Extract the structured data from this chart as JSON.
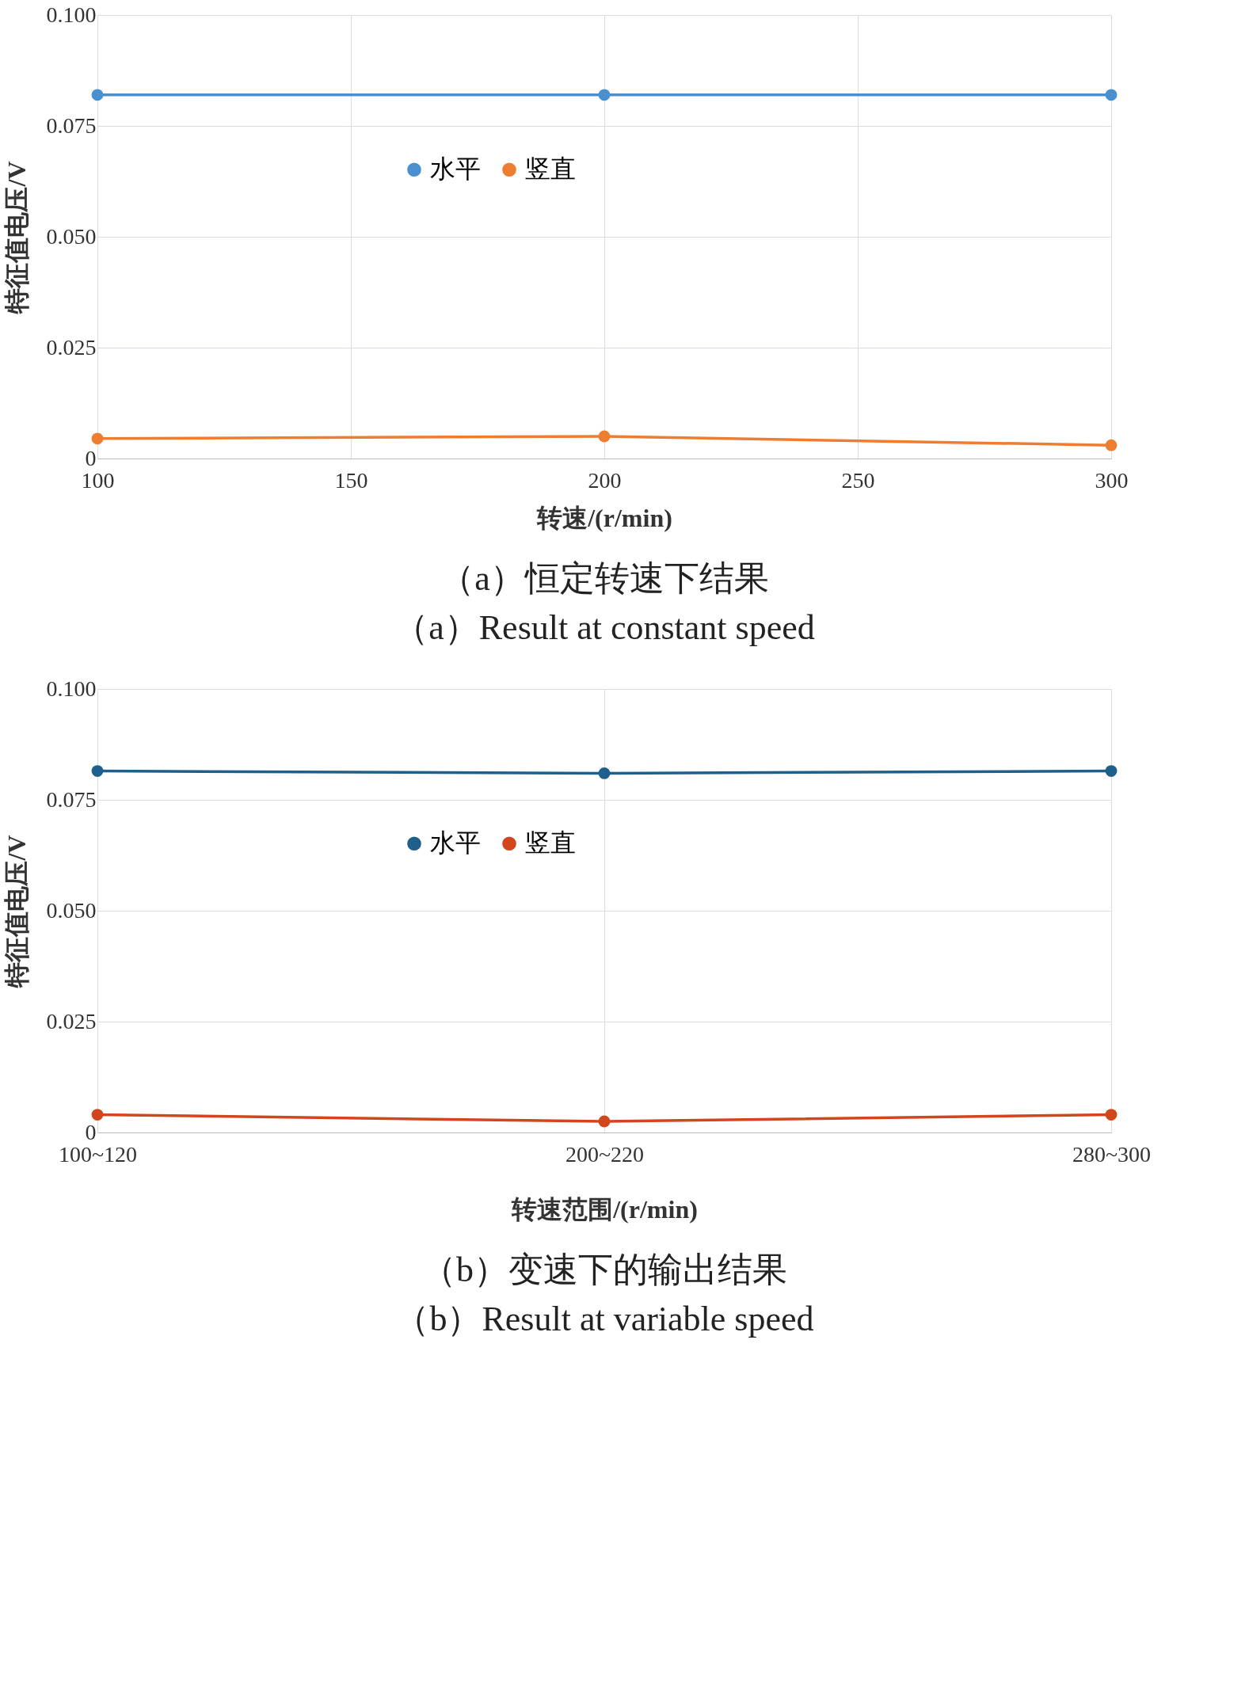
{
  "chart_data": [
    {
      "type": "line",
      "title": "（a）恒定转速下结果",
      "subtitle": "（a）Result at constant speed",
      "xlabel": "转速/(r/min)",
      "ylabel": "特征值电压/V",
      "x": [
        100,
        200,
        300
      ],
      "series": [
        {
          "name": "水平",
          "color": "#4a8fd0",
          "values": [
            0.082,
            0.082,
            0.082
          ]
        },
        {
          "name": "竖直",
          "color": "#ed7d31",
          "values": [
            0.0045,
            0.005,
            0.003
          ]
        }
      ],
      "xlim": [
        100,
        300
      ],
      "xticks": [
        100,
        150,
        200,
        250,
        300
      ],
      "ylim": [
        0,
        0.1
      ],
      "yticks": [
        0,
        {
          "value": 0.025,
          "label": "0.025"
        },
        {
          "value": 0.05,
          "label": "0.050"
        },
        {
          "value": 0.075,
          "label": "0.075"
        },
        {
          "value": 0.1,
          "label": "0.100"
        }
      ],
      "grid": true,
      "legend": "top",
      "marker": "circle",
      "line_style": "solid"
    },
    {
      "type": "line",
      "title": "（b）变速下的输出结果",
      "subtitle": "（b）Result at variable speed",
      "xlabel": "转速范围/(r/min)",
      "ylabel": "特征值电压/V",
      "categories": [
        "100~120",
        "200~220",
        "280~300"
      ],
      "series": [
        {
          "name": "水平",
          "color": "#1f5f8b",
          "values": [
            0.0815,
            0.081,
            0.0815
          ]
        },
        {
          "name": "竖直",
          "color": "#d2461e",
          "values": [
            0.004,
            0.0025,
            0.004
          ]
        }
      ],
      "ylim": [
        0,
        0.1
      ],
      "yticks": [
        0,
        {
          "value": 0.025,
          "label": "0.025"
        },
        {
          "value": 0.05,
          "label": "0.050"
        },
        {
          "value": 0.075,
          "label": "0.075"
        },
        {
          "value": 0.1,
          "label": "0.100"
        }
      ],
      "grid": true,
      "legend": "top",
      "marker": "circle",
      "line_style": "solid"
    }
  ]
}
